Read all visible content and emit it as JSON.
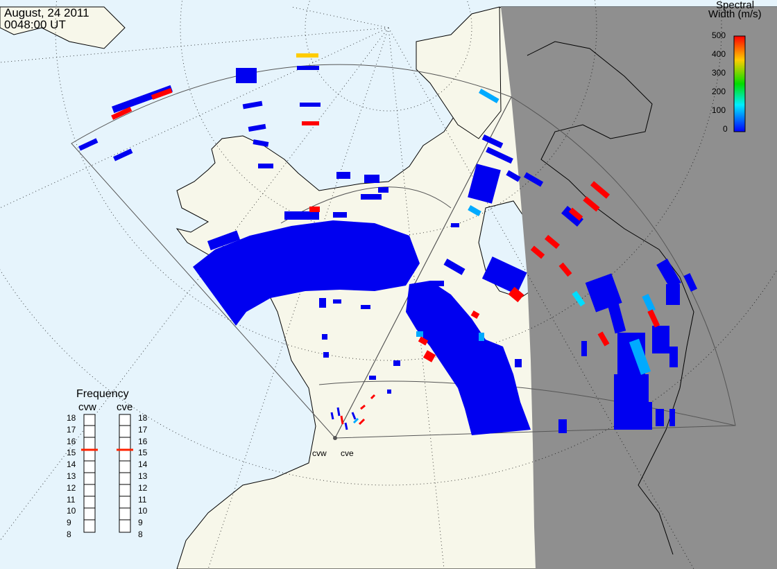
{
  "header": {
    "date": "August, 24 2011",
    "time": "0048:00 UT"
  },
  "colorbar": {
    "title_line1": "Spectral",
    "title_line2": "Width (m/s)",
    "ticks": [
      "500",
      "400",
      "300",
      "200",
      "100",
      "0"
    ],
    "range": [
      0,
      500
    ],
    "colors": [
      "#ff0000",
      "#ffcc00",
      "#00dd00",
      "#00eeff",
      "#0000ff"
    ]
  },
  "frequency_panel": {
    "title": "Frequency",
    "radars": [
      {
        "name": "cvw",
        "frequency_mhz": 15
      },
      {
        "name": "cve",
        "frequency_mhz": 15
      }
    ],
    "ticks": [
      "18",
      "17",
      "16",
      "15",
      "14",
      "13",
      "12",
      "11",
      "10",
      "9",
      "8"
    ],
    "marker_color": "#ff2200"
  },
  "radar_sites": [
    {
      "name": "cvw"
    },
    {
      "name": "cve"
    }
  ],
  "map": {
    "ocean_color": "#e6f4fc",
    "land_color": "#f7f7ea",
    "night_color": "#8f8f8f",
    "scatter_color": "#0000f0"
  }
}
